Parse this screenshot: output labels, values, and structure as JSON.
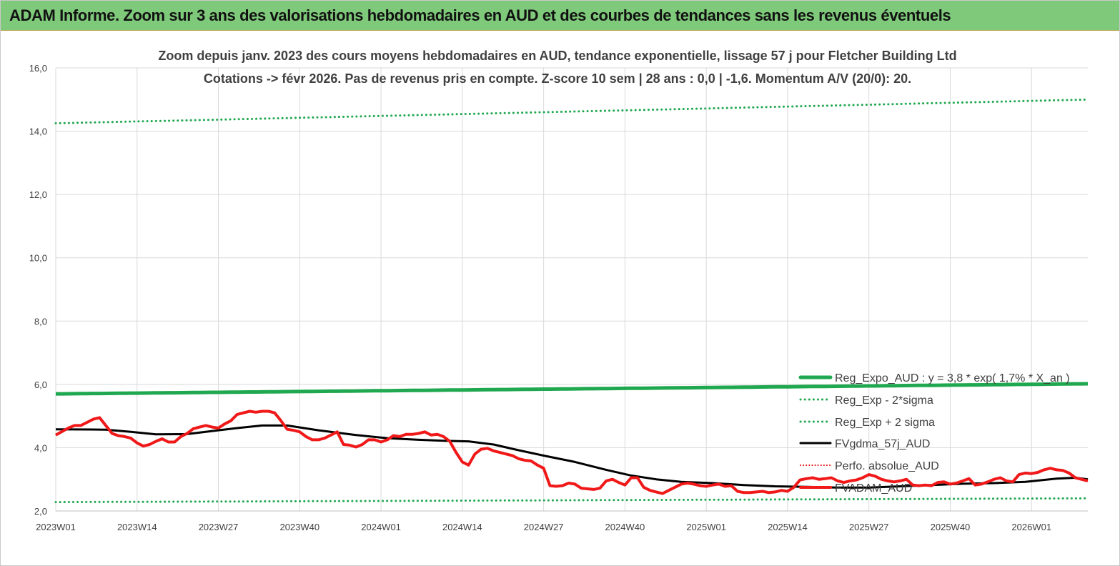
{
  "banner": {
    "title": "ADAM Informe. Zoom sur 3 ans des valorisations hebdomadaires en AUD et des courbes de tendances sans les revenus éventuels"
  },
  "colors": {
    "trend": "#1fa84f",
    "sigma": "#1fa84f",
    "smooth": "#000000",
    "perf": "#e00000",
    "price": "#f01818",
    "grid": "#d9d9d9",
    "banner": "#7fc97a"
  },
  "chart_data": {
    "type": "line",
    "title_lines": [
      "Zoom depuis janv. 2023 des cours moyens hebdomadaires en AUD, tendance exponentielle, lissage 57 j pour Fletcher Building Ltd",
      "Cotations -> févr 2026.  Pas de revenus pris en compte. Z-score 10 sem  |  28 ans : 0,0  |  -1,6. Momentum A/V (20/0): 20."
    ],
    "xlabel": "",
    "ylabel": "",
    "ylim": [
      2.0,
      16.0
    ],
    "yticks": [
      "2,0",
      "4,0",
      "6,0",
      "8,0",
      "10,0",
      "12,0",
      "14,0",
      "16,0"
    ],
    "x_ticks": [
      "2023W01",
      "2023W14",
      "2023W27",
      "2023W40",
      "2024W01",
      "2024W14",
      "2024W27",
      "2024W40",
      "2025W01",
      "2025W14",
      "2025W27",
      "2025W40",
      "2026W01"
    ],
    "x_count": 166,
    "x_start": "2023W01",
    "grid": "vertical and horizontal gridlines",
    "legend_position": "right, lower half",
    "series": [
      {
        "name": "Reg_Expo_AUD : y = 3,8 * exp( 1,7% *  X_an )",
        "style": "solid-thick",
        "color": "#1fa84f",
        "start": 5.7,
        "end": 6.02
      },
      {
        "name": "Reg_Exp - 2*sigma",
        "style": "dotted",
        "color": "#1fa84f",
        "start": 2.28,
        "end": 2.4
      },
      {
        "name": "Reg_Exp + 2 sigma",
        "style": "dotted",
        "color": "#1fa84f",
        "start": 14.25,
        "end": 15.0
      },
      {
        "name": "FVgdma_57j_AUD",
        "style": "solid",
        "color": "#000000",
        "points": [
          [
            0,
            4.58
          ],
          [
            8,
            4.57
          ],
          [
            12,
            4.5
          ],
          [
            16,
            4.42
          ],
          [
            21,
            4.43
          ],
          [
            26,
            4.55
          ],
          [
            29,
            4.62
          ],
          [
            33,
            4.7
          ],
          [
            37,
            4.7
          ],
          [
            42,
            4.55
          ],
          [
            48,
            4.4
          ],
          [
            53,
            4.3
          ],
          [
            58,
            4.25
          ],
          [
            62,
            4.22
          ],
          [
            66,
            4.2
          ],
          [
            70,
            4.1
          ],
          [
            74,
            3.92
          ],
          [
            78,
            3.75
          ],
          [
            83,
            3.55
          ],
          [
            88,
            3.3
          ],
          [
            92,
            3.12
          ],
          [
            96,
            3.0
          ],
          [
            100,
            2.92
          ],
          [
            105,
            2.88
          ],
          [
            110,
            2.82
          ],
          [
            115,
            2.78
          ],
          [
            120,
            2.76
          ],
          [
            125,
            2.74
          ],
          [
            130,
            2.74
          ],
          [
            135,
            2.78
          ],
          [
            140,
            2.82
          ],
          [
            145,
            2.86
          ],
          [
            150,
            2.88
          ],
          [
            155,
            2.92
          ],
          [
            160,
            3.02
          ],
          [
            163,
            3.05
          ],
          [
            165,
            3.0
          ]
        ]
      },
      {
        "name": "Perfo. absolue_AUD",
        "style": "dotted",
        "color": "#e00000"
      },
      {
        "name": "FVADAM_AUD",
        "style": "solid-thick",
        "color": "#f01818",
        "points": [
          [
            0,
            4.4
          ],
          [
            2,
            4.62
          ],
          [
            3,
            4.7
          ],
          [
            4,
            4.7
          ],
          [
            5,
            4.8
          ],
          [
            6,
            4.9
          ],
          [
            7,
            4.95
          ],
          [
            8,
            4.7
          ],
          [
            9,
            4.45
          ],
          [
            10,
            4.38
          ],
          [
            11,
            4.35
          ],
          [
            12,
            4.3
          ],
          [
            13,
            4.15
          ],
          [
            14,
            4.05
          ],
          [
            15,
            4.1
          ],
          [
            16,
            4.2
          ],
          [
            17,
            4.28
          ],
          [
            18,
            4.18
          ],
          [
            19,
            4.18
          ],
          [
            20,
            4.35
          ],
          [
            21,
            4.45
          ],
          [
            22,
            4.6
          ],
          [
            23,
            4.65
          ],
          [
            24,
            4.7
          ],
          [
            25,
            4.65
          ],
          [
            26,
            4.62
          ],
          [
            27,
            4.75
          ],
          [
            28,
            4.85
          ],
          [
            29,
            5.05
          ],
          [
            30,
            5.1
          ],
          [
            31,
            5.15
          ],
          [
            32,
            5.12
          ],
          [
            33,
            5.15
          ],
          [
            34,
            5.15
          ],
          [
            35,
            5.1
          ],
          [
            36,
            4.85
          ],
          [
            37,
            4.58
          ],
          [
            38,
            4.55
          ],
          [
            39,
            4.5
          ],
          [
            40,
            4.35
          ],
          [
            41,
            4.25
          ],
          [
            42,
            4.25
          ],
          [
            43,
            4.3
          ],
          [
            44,
            4.4
          ],
          [
            45,
            4.5
          ],
          [
            46,
            4.1
          ],
          [
            47,
            4.08
          ],
          [
            48,
            4.02
          ],
          [
            49,
            4.1
          ],
          [
            50,
            4.25
          ],
          [
            51,
            4.25
          ],
          [
            52,
            4.18
          ],
          [
            53,
            4.25
          ],
          [
            54,
            4.38
          ],
          [
            55,
            4.35
          ],
          [
            56,
            4.42
          ],
          [
            57,
            4.42
          ],
          [
            58,
            4.45
          ],
          [
            59,
            4.5
          ],
          [
            60,
            4.4
          ],
          [
            61,
            4.42
          ],
          [
            62,
            4.35
          ],
          [
            63,
            4.2
          ],
          [
            64,
            3.85
          ],
          [
            65,
            3.55
          ],
          [
            66,
            3.45
          ],
          [
            67,
            3.8
          ],
          [
            68,
            3.95
          ],
          [
            69,
            3.98
          ],
          [
            70,
            3.9
          ],
          [
            71,
            3.85
          ],
          [
            72,
            3.8
          ],
          [
            73,
            3.75
          ],
          [
            74,
            3.65
          ],
          [
            75,
            3.6
          ],
          [
            76,
            3.58
          ],
          [
            77,
            3.45
          ],
          [
            78,
            3.35
          ],
          [
            79,
            2.8
          ],
          [
            80,
            2.78
          ],
          [
            81,
            2.8
          ],
          [
            82,
            2.88
          ],
          [
            83,
            2.85
          ],
          [
            84,
            2.72
          ],
          [
            85,
            2.7
          ],
          [
            86,
            2.68
          ],
          [
            87,
            2.72
          ],
          [
            88,
            2.95
          ],
          [
            89,
            3.0
          ],
          [
            90,
            2.9
          ],
          [
            91,
            2.82
          ],
          [
            92,
            3.05
          ],
          [
            93,
            3.05
          ],
          [
            94,
            2.75
          ],
          [
            95,
            2.65
          ],
          [
            96,
            2.6
          ],
          [
            97,
            2.55
          ],
          [
            98,
            2.65
          ],
          [
            99,
            2.75
          ],
          [
            100,
            2.85
          ],
          [
            101,
            2.88
          ],
          [
            102,
            2.85
          ],
          [
            103,
            2.8
          ],
          [
            104,
            2.78
          ],
          [
            105,
            2.82
          ],
          [
            106,
            2.85
          ],
          [
            107,
            2.78
          ],
          [
            108,
            2.8
          ],
          [
            109,
            2.62
          ],
          [
            110,
            2.58
          ],
          [
            111,
            2.58
          ],
          [
            112,
            2.6
          ],
          [
            113,
            2.62
          ],
          [
            114,
            2.58
          ],
          [
            115,
            2.6
          ],
          [
            116,
            2.65
          ],
          [
            117,
            2.62
          ],
          [
            118,
            2.75
          ],
          [
            119,
            2.98
          ],
          [
            120,
            3.02
          ],
          [
            121,
            3.05
          ],
          [
            122,
            3.0
          ],
          [
            123,
            3.02
          ],
          [
            124,
            3.05
          ],
          [
            125,
            2.95
          ],
          [
            126,
            2.9
          ],
          [
            127,
            2.95
          ],
          [
            128,
            2.98
          ],
          [
            129,
            3.05
          ],
          [
            130,
            3.15
          ],
          [
            131,
            3.1
          ],
          [
            132,
            3.0
          ],
          [
            133,
            2.95
          ],
          [
            134,
            2.92
          ],
          [
            135,
            2.95
          ],
          [
            136,
            3.0
          ],
          [
            137,
            2.82
          ],
          [
            138,
            2.8
          ],
          [
            139,
            2.82
          ],
          [
            140,
            2.8
          ],
          [
            141,
            2.9
          ],
          [
            142,
            2.92
          ],
          [
            143,
            2.85
          ],
          [
            144,
            2.88
          ],
          [
            145,
            2.95
          ],
          [
            146,
            3.02
          ],
          [
            147,
            2.82
          ],
          [
            148,
            2.85
          ],
          [
            149,
            2.92
          ],
          [
            150,
            3.0
          ],
          [
            151,
            3.05
          ],
          [
            152,
            2.95
          ],
          [
            153,
            2.92
          ],
          [
            154,
            3.15
          ],
          [
            155,
            3.2
          ],
          [
            156,
            3.18
          ],
          [
            157,
            3.22
          ],
          [
            158,
            3.3
          ],
          [
            159,
            3.35
          ],
          [
            160,
            3.3
          ],
          [
            161,
            3.28
          ],
          [
            162,
            3.2
          ],
          [
            163,
            3.05
          ],
          [
            164,
            3.0
          ],
          [
            165,
            2.95
          ]
        ]
      }
    ]
  }
}
